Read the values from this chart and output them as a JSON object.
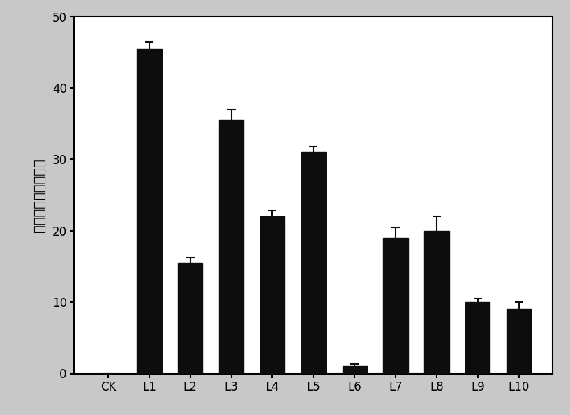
{
  "categories": [
    "CK",
    "L1",
    "L2",
    "L3",
    "L4",
    "L5",
    "L6",
    "L7",
    "L8",
    "L9",
    "L10"
  ],
  "values": [
    0,
    45.5,
    15.5,
    35.5,
    22.0,
    31.0,
    1.0,
    19.0,
    20.0,
    10.0,
    9.0
  ],
  "errors": [
    0,
    1.0,
    0.8,
    1.5,
    0.8,
    0.8,
    0.3,
    1.5,
    2.0,
    0.5,
    1.0
  ],
  "bar_color": "#0d0d0d",
  "error_color": "#0d0d0d",
  "ylabel": "相对表达量（倍数）",
  "ylim": [
    0,
    50
  ],
  "yticks": [
    0,
    10,
    20,
    30,
    40,
    50
  ],
  "outer_background": "#c8c8c8",
  "plot_background": "#ffffff",
  "bar_width": 0.6,
  "ylabel_fontsize": 14,
  "tick_fontsize": 12,
  "spine_linewidth": 1.5,
  "capsize": 4,
  "elinewidth": 1.5
}
